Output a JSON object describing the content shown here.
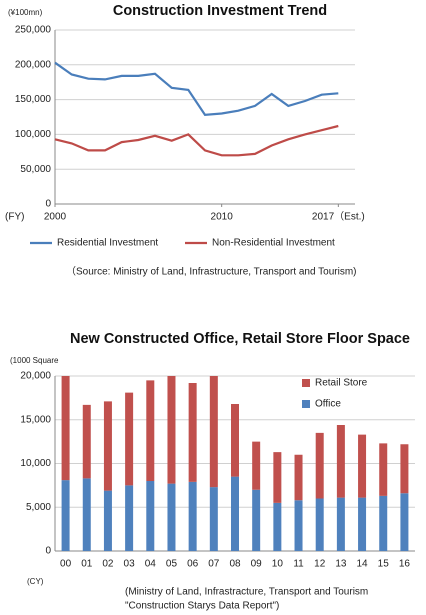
{
  "chart_data": [
    {
      "type": "line",
      "title": "Construction Investment Trend",
      "unit_label": "(¥100mn)",
      "x_label": "(FY)",
      "x": [
        2000,
        2001,
        2002,
        2003,
        2004,
        2005,
        2006,
        2007,
        2008,
        2009,
        2010,
        2011,
        2012,
        2013,
        2014,
        2015,
        2016,
        2017
      ],
      "xlim": [
        2000,
        2018
      ],
      "xticks": [
        2000,
        2010,
        {
          "value": 2017,
          "label": "2017（Est.)"
        }
      ],
      "ylim": [
        0,
        250000
      ],
      "yticks": [
        0,
        {
          "value": 50000,
          "label": "50,000"
        },
        {
          "value": 100000,
          "label": "100,000"
        },
        {
          "value": 150000,
          "label": "150,000"
        },
        {
          "value": 200000,
          "label": "200,000"
        },
        {
          "value": 250000,
          "label": "250,000"
        }
      ],
      "grid": true,
      "legend": "bottom",
      "series": [
        {
          "name": "Residential Investment",
          "color": "#4a7ebb",
          "values": [
            203000,
            186000,
            180000,
            179000,
            184000,
            184000,
            187000,
            167000,
            164000,
            128000,
            130000,
            134000,
            141000,
            158000,
            141000,
            148000,
            157000,
            159000
          ]
        },
        {
          "name": "Non-Residential Investment",
          "color": "#be4b48",
          "values": [
            93000,
            87000,
            77000,
            77000,
            89000,
            92000,
            98000,
            91000,
            100000,
            77000,
            70000,
            70000,
            72000,
            84000,
            93000,
            100000,
            106000,
            112000
          ]
        }
      ],
      "source": [
        "（Source:  Ministry of Land, Infrastructure, Transport and Tourism)"
      ]
    },
    {
      "type": "bar",
      "stacked": true,
      "title": "New Constructed Office, Retail Store Floor Space",
      "unit_label": "(1000 Square",
      "x_label": "(CY)",
      "categories": [
        "00",
        "01",
        "02",
        "03",
        "04",
        "05",
        "06",
        "07",
        "08",
        "09",
        "10",
        "11",
        "12",
        "13",
        "14",
        "15",
        "16"
      ],
      "ylim": [
        0,
        20000
      ],
      "yticks": [
        0,
        {
          "value": 5000,
          "label": "5,000"
        },
        {
          "value": 10000,
          "label": "10,000"
        },
        {
          "value": 15000,
          "label": "15,000"
        },
        {
          "value": 20000,
          "label": "20,000"
        }
      ],
      "grid": true,
      "legend": "top-right",
      "series": [
        {
          "name": "Office",
          "color": "#4f81bd",
          "values": [
            8100,
            8300,
            6900,
            7500,
            8000,
            7700,
            7900,
            7300,
            8500,
            7000,
            5500,
            5800,
            6000,
            6100,
            6100,
            6300,
            6600
          ]
        },
        {
          "name": "Retail Store",
          "color": "#c0504d",
          "values": [
            11900,
            8400,
            10200,
            10600,
            11500,
            12300,
            11300,
            12700,
            8300,
            5500,
            5800,
            5200,
            7500,
            8300,
            7200,
            6000,
            5600
          ]
        }
      ],
      "source": [
        "(Ministry of Land, Infrastracture,  Transport and Tourism",
        "\"Construction Starys Data Report\")"
      ]
    }
  ]
}
